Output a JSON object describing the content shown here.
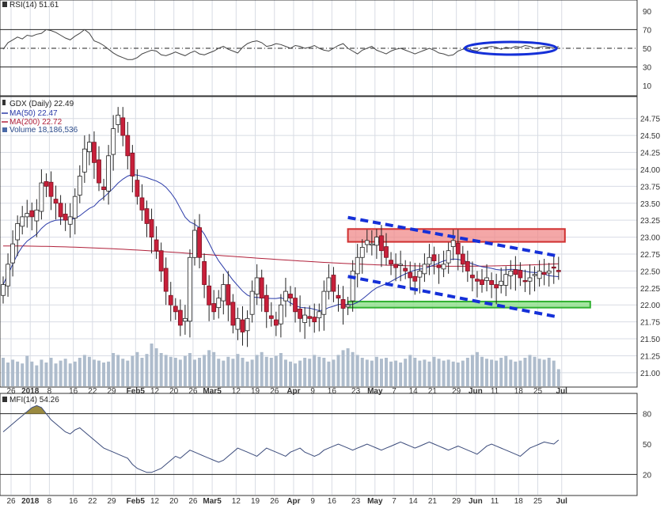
{
  "colors": {
    "up_candle": "#ffffff",
    "down_candle": "#c8203a",
    "ma50": "#2a3aa8",
    "ma200": "#b0203a",
    "volume": "#aebccc",
    "resistance_box": "#f08a8a",
    "support_box": "#8ee08a",
    "trendline": "#1530d8",
    "rsi_ellipse": "#1530d8",
    "mfi_fill": "#9a8a40",
    "grid": "#d8dce4"
  },
  "chart_data": [
    {
      "type": "line",
      "panel": "rsi",
      "indicator_label": "RSI(14)",
      "last_value": "51.61",
      "y_ticks": [
        "90",
        "70",
        "50",
        "30",
        "10"
      ],
      "ylim": [
        0,
        100
      ],
      "reference_lines": [
        70,
        50,
        30
      ],
      "x_index": [
        0,
        1,
        2,
        3,
        4,
        5,
        6,
        7,
        8,
        9,
        10,
        11,
        12,
        13,
        14,
        15,
        16,
        17,
        18,
        19,
        20,
        21,
        22,
        23,
        24,
        25,
        26,
        27,
        28,
        29,
        30,
        31,
        32,
        33,
        34,
        35,
        36,
        37,
        38,
        39,
        40,
        41,
        42,
        43,
        44,
        45,
        46,
        47,
        48,
        49,
        50,
        51,
        52,
        53,
        54,
        55,
        56,
        57,
        58,
        59,
        60,
        61,
        62,
        63,
        64,
        65,
        66,
        67,
        68,
        69,
        70,
        71,
        72,
        73,
        74,
        75,
        76,
        77,
        78,
        79,
        80,
        81,
        82,
        83,
        84,
        85,
        86,
        87,
        88,
        89,
        90,
        91,
        92,
        93,
        94,
        95,
        96,
        97,
        98,
        99,
        100,
        101,
        102,
        103,
        104,
        105,
        106,
        107,
        108,
        109,
        110,
        111,
        112,
        113,
        114,
        115,
        116
      ],
      "values": [
        49,
        56,
        59,
        62,
        60,
        64,
        63,
        65,
        66,
        70,
        69,
        67,
        64,
        61,
        59,
        63,
        66,
        70,
        66,
        58,
        56,
        53,
        49,
        45,
        42,
        40,
        38,
        38,
        40,
        44,
        46,
        48,
        47,
        43,
        42,
        44,
        46,
        44,
        42,
        45,
        47,
        44,
        43,
        45,
        47,
        50,
        52,
        49,
        47,
        45,
        51,
        55,
        57,
        58,
        56,
        52,
        53,
        55,
        54,
        52,
        50,
        53,
        52,
        50,
        51,
        53,
        50,
        48,
        47,
        50,
        53,
        55,
        50,
        47,
        44,
        48,
        50,
        52,
        48,
        46,
        44,
        47,
        49,
        50,
        48,
        46,
        44,
        46,
        48,
        50,
        48,
        45,
        44,
        42,
        43,
        47,
        49,
        50,
        48,
        47,
        50,
        51,
        52,
        51,
        49,
        51,
        50,
        52,
        51,
        53,
        52,
        50,
        51,
        52,
        51,
        50,
        52
      ]
    },
    {
      "type": "candlestick",
      "panel": "price",
      "symbol_label": "GDX (Daily) 22.49",
      "series": [
        {
          "name": "MA(50) 22.47",
          "kind": "line"
        },
        {
          "name": "MA(200) 22.72",
          "kind": "line"
        },
        {
          "name": "Volume 18,186,536",
          "kind": "bar"
        }
      ],
      "y_ticks": [
        "24.75",
        "24.50",
        "24.25",
        "24.00",
        "23.75",
        "23.50",
        "23.25",
        "23.00",
        "22.75",
        "22.50",
        "22.25",
        "22.00",
        "21.75",
        "21.50",
        "21.25",
        "21.00"
      ],
      "ylim": [
        20.8,
        25.05
      ],
      "x_ticks": [
        "26",
        "2018",
        "8",
        "16",
        "22",
        "29",
        "Feb5",
        "12",
        "20",
        "26",
        "Mar5",
        "12",
        "19",
        "26",
        "Apr",
        "9",
        "16",
        "23",
        "May",
        "7",
        "14",
        "21",
        "29",
        "Jun",
        "11",
        "18",
        "25",
        "Jul"
      ],
      "annotations": {
        "resistance_zone": [
          22.93,
          23.12
        ],
        "support_zone": [
          21.96,
          22.05
        ],
        "upper_trendline": {
          "from_index": 72,
          "from_price": 23.29,
          "to_index": 116,
          "to_price": 22.72
        },
        "lower_trendline": {
          "from_index": 72,
          "from_price": 22.42,
          "to_index": 116,
          "to_price": 21.82
        }
      },
      "close": [
        22.3,
        22.6,
        22.9,
        23.2,
        23.3,
        23.35,
        23.3,
        23.4,
        23.8,
        23.75,
        23.6,
        23.5,
        23.3,
        23.25,
        23.3,
        23.6,
        23.9,
        24.3,
        24.4,
        24.1,
        23.8,
        23.7,
        24.2,
        24.6,
        24.8,
        24.5,
        24.2,
        23.9,
        23.6,
        23.4,
        23.2,
        23.0,
        22.8,
        22.5,
        22.2,
        22.0,
        21.9,
        21.7,
        21.8,
        22.7,
        23.1,
        22.7,
        22.3,
        22.0,
        21.9,
        22.1,
        22.3,
        22.0,
        21.7,
        21.8,
        21.6,
        21.8,
        22.2,
        22.4,
        22.1,
        21.9,
        21.8,
        21.7,
        22.0,
        22.2,
        22.1,
        21.9,
        21.8,
        21.85,
        21.8,
        21.75,
        21.9,
        22.2,
        22.4,
        22.2,
        22.1,
        21.95,
        22.0,
        22.5,
        22.7,
        22.85,
        22.95,
        22.9,
        23.0,
        22.8,
        22.7,
        22.6,
        22.55,
        22.6,
        22.5,
        22.4,
        22.35,
        22.5,
        22.6,
        22.7,
        22.65,
        22.55,
        22.6,
        22.8,
        22.95,
        22.75,
        22.6,
        22.5,
        22.4,
        22.35,
        22.3,
        22.4,
        22.3,
        22.25,
        22.35,
        22.45,
        22.5,
        22.45,
        22.4,
        22.35,
        22.4,
        22.45,
        22.5,
        22.45,
        22.5,
        22.55,
        22.49
      ],
      "volume_millions": [
        30,
        25,
        28,
        26,
        24,
        32,
        26,
        22,
        28,
        25,
        30,
        24,
        27,
        29,
        24,
        26,
        30,
        33,
        31,
        28,
        27,
        25,
        26,
        35,
        33,
        29,
        27,
        32,
        36,
        30,
        34,
        45,
        40,
        35,
        33,
        31,
        30,
        28,
        32,
        35,
        28,
        30,
        33,
        38,
        36,
        29,
        27,
        31,
        29,
        34,
        30,
        26,
        28,
        33,
        36,
        31,
        30,
        32,
        35,
        28,
        26,
        24,
        27,
        30,
        29,
        33,
        31,
        30,
        26,
        28,
        33,
        38,
        40,
        36,
        33,
        30,
        28,
        27,
        31,
        29,
        30,
        26,
        27,
        25,
        29,
        33,
        30,
        27,
        28,
        26,
        31,
        29,
        27,
        28,
        26,
        25,
        27,
        30,
        33,
        36,
        31,
        29,
        28,
        27,
        30,
        32,
        28,
        26,
        27,
        30,
        33,
        31,
        29,
        28,
        30,
        27,
        18
      ]
    },
    {
      "type": "line",
      "panel": "mfi",
      "indicator_label": "MFI(14)",
      "last_value": "54.26",
      "y_ticks": [
        "80",
        "50",
        "20"
      ],
      "ylim": [
        0,
        100
      ],
      "reference_lines": [
        80,
        20
      ],
      "values": [
        62,
        66,
        70,
        74,
        78,
        82,
        86,
        88,
        86,
        80,
        74,
        70,
        66,
        62,
        60,
        64,
        66,
        62,
        58,
        54,
        50,
        46,
        44,
        42,
        40,
        38,
        36,
        30,
        26,
        24,
        22,
        22,
        24,
        26,
        30,
        34,
        38,
        36,
        40,
        44,
        42,
        40,
        38,
        36,
        34,
        32,
        34,
        38,
        42,
        46,
        44,
        42,
        40,
        38,
        42,
        46,
        44,
        42,
        40,
        38,
        42,
        44,
        46,
        42,
        40,
        38,
        40,
        44,
        46,
        48,
        50,
        48,
        46,
        44,
        46,
        48,
        50,
        48,
        46,
        44,
        46,
        48,
        50,
        52,
        50,
        48,
        46,
        48,
        50,
        52,
        50,
        48,
        46,
        44,
        46,
        48,
        46,
        44,
        42,
        40,
        44,
        48,
        50,
        48,
        46,
        44,
        42,
        40,
        38,
        42,
        46,
        48,
        50,
        52,
        51,
        50,
        54
      ]
    }
  ]
}
